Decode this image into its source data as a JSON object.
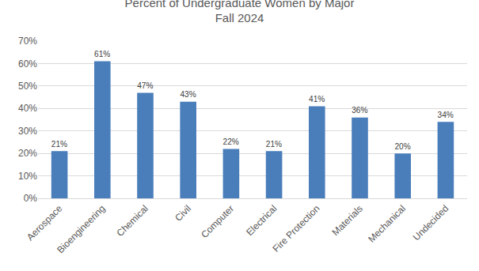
{
  "chart_data": {
    "type": "bar",
    "title": "Percent of Undergraduate Women by Major",
    "subtitle": "Fall 2024",
    "categories": [
      "Aerospace",
      "Bioengineering",
      "Chemical",
      "Civil",
      "Computer",
      "Electrical",
      "Fire Protection",
      "Materials",
      "Mechanical",
      "Undecided"
    ],
    "values": [
      21,
      61,
      47,
      43,
      22,
      21,
      41,
      36,
      20,
      34
    ],
    "value_labels": [
      "21%",
      "61%",
      "47%",
      "43%",
      "22%",
      "21%",
      "41%",
      "36%",
      "20%",
      "34%"
    ],
    "data_labels": true,
    "color": "#4a7ebb",
    "ylim": [
      0,
      70
    ],
    "yticks": [
      {
        "value": 0,
        "label": "0%"
      },
      {
        "value": 10,
        "label": "10%"
      },
      {
        "value": 20,
        "label": "20%"
      },
      {
        "value": 30,
        "label": "30%"
      },
      {
        "value": 40,
        "label": "40%"
      },
      {
        "value": 50,
        "label": "50%"
      },
      {
        "value": 60,
        "label": "60%"
      },
      {
        "value": 70,
        "label": "70%"
      }
    ],
    "grid": true
  }
}
